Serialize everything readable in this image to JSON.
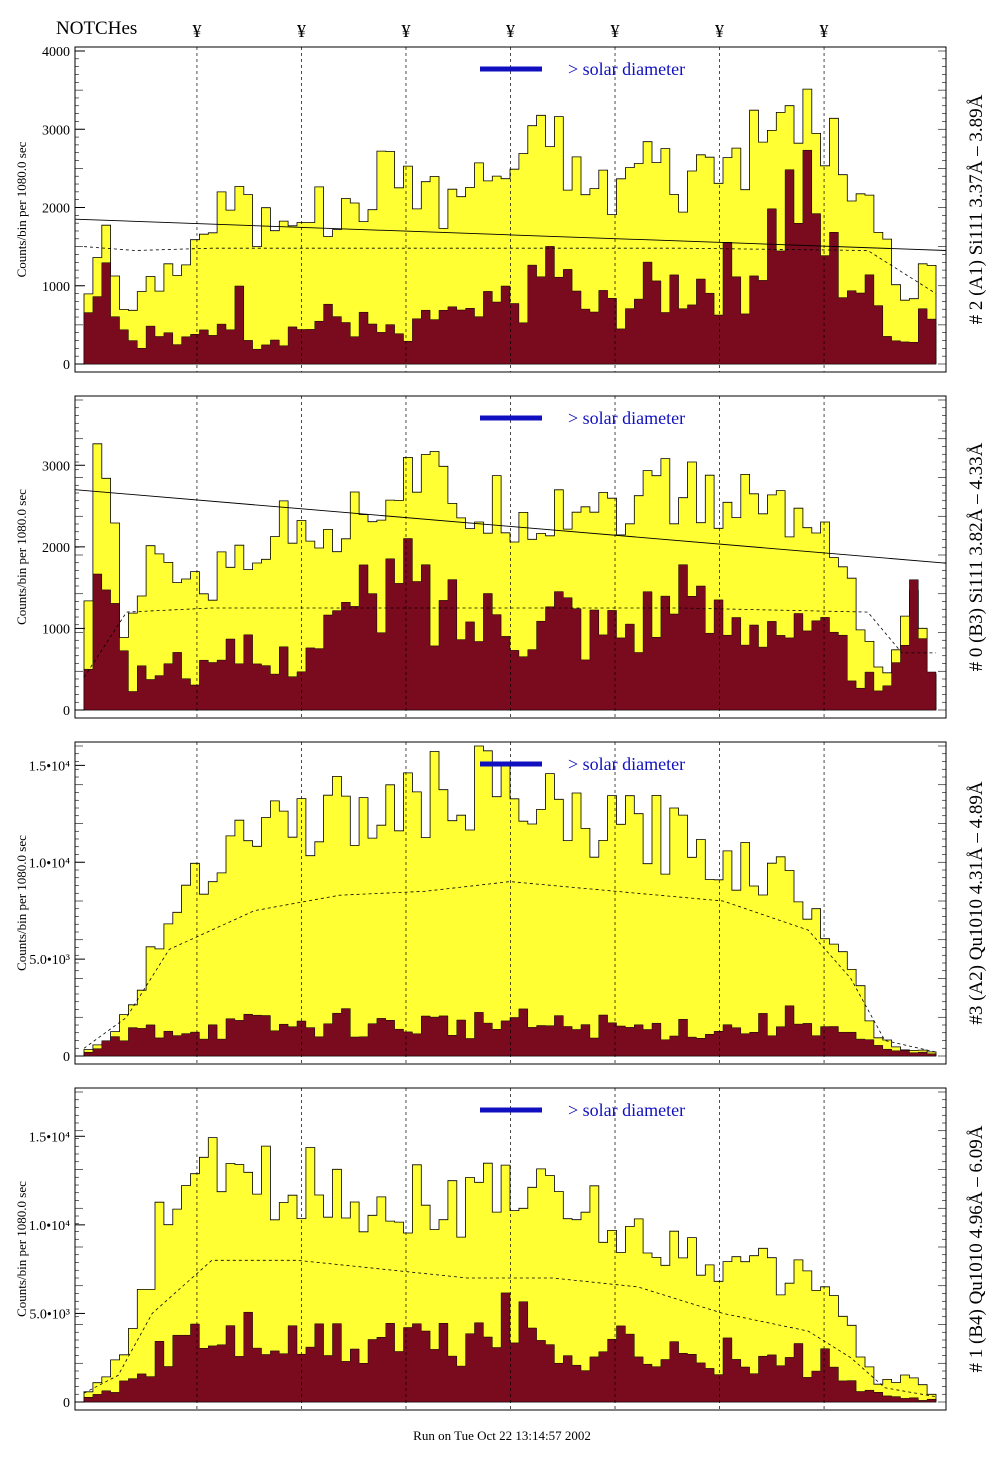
{
  "header": {
    "notches_label": "NOTCHes",
    "notch_symbol": "¥"
  },
  "footer": {
    "run_text": "Run on Tue Oct 22 13:14:57 2002"
  },
  "colors": {
    "fill_total": "#ffff33",
    "fill_sub": "#7a0a1e",
    "solar": "#1010c0"
  },
  "chart_data": [
    {
      "type": "area",
      "title": "# 2 (A1) Si111  3.37Å – 3.89Å",
      "ylabel": "Counts/bin per   1080.0 sec",
      "annotation": "> solar diameter",
      "ylim": [
        0,
        4000
      ],
      "yticks": [
        {
          "v": 0,
          "label": "0"
        },
        {
          "v": 1000,
          "label": "1000"
        },
        {
          "v": 2000,
          "label": "2000"
        },
        {
          "v": 3000,
          "label": "3000"
        },
        {
          "v": 4000,
          "label": "4000"
        }
      ],
      "total": [
        [
          0.0,
          700
        ],
        [
          0.02,
          1800
        ],
        [
          0.05,
          600
        ],
        [
          0.08,
          1000
        ],
        [
          0.12,
          1400
        ],
        [
          0.15,
          1800
        ],
        [
          0.18,
          2200
        ],
        [
          0.2,
          1700
        ],
        [
          0.25,
          2100
        ],
        [
          0.3,
          1800
        ],
        [
          0.35,
          2400
        ],
        [
          0.38,
          2500
        ],
        [
          0.42,
          2000
        ],
        [
          0.45,
          2300
        ],
        [
          0.5,
          2500
        ],
        [
          0.53,
          2700
        ],
        [
          0.55,
          3100
        ],
        [
          0.58,
          2300
        ],
        [
          0.62,
          2200
        ],
        [
          0.66,
          2700
        ],
        [
          0.7,
          2300
        ],
        [
          0.74,
          2600
        ],
        [
          0.78,
          2700
        ],
        [
          0.81,
          3000
        ],
        [
          0.84,
          3300
        ],
        [
          0.88,
          2700
        ],
        [
          0.91,
          2200
        ],
        [
          0.94,
          1500
        ],
        [
          0.97,
          600
        ],
        [
          0.99,
          1900
        ],
        [
          1.0,
          300
        ]
      ],
      "sub": [
        [
          0.0,
          200
        ],
        [
          0.02,
          1700
        ],
        [
          0.05,
          300
        ],
        [
          0.08,
          400
        ],
        [
          0.12,
          250
        ],
        [
          0.15,
          450
        ],
        [
          0.18,
          800
        ],
        [
          0.2,
          300
        ],
        [
          0.25,
          450
        ],
        [
          0.3,
          600
        ],
        [
          0.35,
          400
        ],
        [
          0.38,
          300
        ],
        [
          0.42,
          700
        ],
        [
          0.45,
          500
        ],
        [
          0.5,
          800
        ],
        [
          0.53,
          900
        ],
        [
          0.55,
          1400
        ],
        [
          0.58,
          700
        ],
        [
          0.62,
          700
        ],
        [
          0.66,
          900
        ],
        [
          0.7,
          1000
        ],
        [
          0.74,
          1100
        ],
        [
          0.78,
          1100
        ],
        [
          0.81,
          1800
        ],
        [
          0.84,
          2200
        ],
        [
          0.88,
          1300
        ],
        [
          0.91,
          1000
        ],
        [
          0.94,
          600
        ],
        [
          0.97,
          200
        ],
        [
          0.99,
          1000
        ],
        [
          1.0,
          100
        ]
      ],
      "baseline": [
        [
          0.0,
          1500
        ],
        [
          0.06,
          1450
        ],
        [
          0.15,
          1480
        ],
        [
          0.3,
          1480
        ],
        [
          0.5,
          1480
        ],
        [
          0.7,
          1480
        ],
        [
          0.92,
          1450
        ],
        [
          1.0,
          900
        ]
      ],
      "trend": [
        [
          0.0,
          1850
        ],
        [
          0.5,
          1650
        ],
        [
          1.0,
          1450
        ]
      ],
      "notches": [
        0.14,
        0.26,
        0.38,
        0.5,
        0.62,
        0.74,
        0.86
      ]
    },
    {
      "type": "area",
      "title": "# 0 (B3) Si111  3.82Å – 4.33Å",
      "ylabel": "Counts/bin per   1080.0 sec",
      "annotation": "> solar diameter",
      "ylim": [
        0,
        3800
      ],
      "yticks": [
        {
          "v": 0,
          "label": "0"
        },
        {
          "v": 1000,
          "label": "1000"
        },
        {
          "v": 2000,
          "label": "2000"
        },
        {
          "v": 3000,
          "label": "3000"
        }
      ],
      "total": [
        [
          0.0,
          600
        ],
        [
          0.02,
          3400
        ],
        [
          0.05,
          800
        ],
        [
          0.08,
          1800
        ],
        [
          0.12,
          1700
        ],
        [
          0.15,
          1500
        ],
        [
          0.18,
          1900
        ],
        [
          0.22,
          2100
        ],
        [
          0.26,
          2400
        ],
        [
          0.3,
          2200
        ],
        [
          0.34,
          2600
        ],
        [
          0.38,
          2900
        ],
        [
          0.42,
          2700
        ],
        [
          0.46,
          2400
        ],
        [
          0.5,
          2500
        ],
        [
          0.53,
          2400
        ],
        [
          0.56,
          2500
        ],
        [
          0.6,
          2600
        ],
        [
          0.64,
          2500
        ],
        [
          0.68,
          2700
        ],
        [
          0.72,
          2600
        ],
        [
          0.76,
          2500
        ],
        [
          0.8,
          2600
        ],
        [
          0.84,
          2300
        ],
        [
          0.88,
          2200
        ],
        [
          0.91,
          1200
        ],
        [
          0.94,
          300
        ],
        [
          0.97,
          1500
        ],
        [
          1.0,
          200
        ]
      ],
      "sub": [
        [
          0.0,
          200
        ],
        [
          0.02,
          2600
        ],
        [
          0.05,
          300
        ],
        [
          0.08,
          500
        ],
        [
          0.12,
          600
        ],
        [
          0.15,
          400
        ],
        [
          0.18,
          700
        ],
        [
          0.22,
          500
        ],
        [
          0.26,
          800
        ],
        [
          0.3,
          1100
        ],
        [
          0.34,
          1300
        ],
        [
          0.38,
          1600
        ],
        [
          0.42,
          1200
        ],
        [
          0.46,
          1100
        ],
        [
          0.5,
          1300
        ],
        [
          0.53,
          1000
        ],
        [
          0.56,
          1300
        ],
        [
          0.6,
          1000
        ],
        [
          0.64,
          1100
        ],
        [
          0.68,
          1300
        ],
        [
          0.72,
          1200
        ],
        [
          0.76,
          1100
        ],
        [
          0.8,
          1300
        ],
        [
          0.84,
          900
        ],
        [
          0.88,
          800
        ],
        [
          0.91,
          500
        ],
        [
          0.94,
          100
        ],
        [
          0.97,
          1400
        ],
        [
          1.0,
          100
        ]
      ],
      "baseline": [
        [
          0.0,
          400
        ],
        [
          0.05,
          1200
        ],
        [
          0.15,
          1250
        ],
        [
          0.3,
          1250
        ],
        [
          0.5,
          1250
        ],
        [
          0.7,
          1250
        ],
        [
          0.92,
          1200
        ],
        [
          0.96,
          700
        ],
        [
          1.0,
          700
        ]
      ],
      "trend": [
        [
          0.0,
          2700
        ],
        [
          0.5,
          2250
        ],
        [
          1.0,
          1800
        ]
      ],
      "notches": [
        0.14,
        0.26,
        0.38,
        0.5,
        0.62,
        0.74,
        0.86
      ]
    },
    {
      "type": "area",
      "title": "#3 (A2) Qu1010  4.31Å – 4.89Å",
      "ylabel": "Counts/bin per   1080.0 sec",
      "annotation": "> solar diameter",
      "ylim": [
        0,
        16000
      ],
      "yticks": [
        {
          "v": 0,
          "label": "0"
        },
        {
          "v": 5000,
          "label": "5.0•10³"
        },
        {
          "v": 10000,
          "label": "1.0•10⁴"
        },
        {
          "v": 15000,
          "label": "1.5•10⁴"
        }
      ],
      "total": [
        [
          0.0,
          200
        ],
        [
          0.03,
          800
        ],
        [
          0.06,
          3000
        ],
        [
          0.09,
          6000
        ],
        [
          0.12,
          9000
        ],
        [
          0.15,
          10500
        ],
        [
          0.18,
          11500
        ],
        [
          0.22,
          12000
        ],
        [
          0.26,
          12200
        ],
        [
          0.3,
          12500
        ],
        [
          0.34,
          12300
        ],
        [
          0.38,
          13000
        ],
        [
          0.42,
          13500
        ],
        [
          0.46,
          14000
        ],
        [
          0.5,
          13000
        ],
        [
          0.54,
          12500
        ],
        [
          0.58,
          12000
        ],
        [
          0.62,
          11500
        ],
        [
          0.66,
          11800
        ],
        [
          0.7,
          11000
        ],
        [
          0.74,
          10500
        ],
        [
          0.78,
          10000
        ],
        [
          0.82,
          9000
        ],
        [
          0.86,
          8000
        ],
        [
          0.9,
          5000
        ],
        [
          0.93,
          1000
        ],
        [
          0.96,
          400
        ],
        [
          1.0,
          200
        ]
      ],
      "sub": [
        [
          0.0,
          100
        ],
        [
          0.06,
          1200
        ],
        [
          0.1,
          1500
        ],
        [
          0.15,
          1400
        ],
        [
          0.2,
          1600
        ],
        [
          0.25,
          1500
        ],
        [
          0.3,
          1800
        ],
        [
          0.35,
          1500
        ],
        [
          0.4,
          1700
        ],
        [
          0.45,
          1600
        ],
        [
          0.5,
          1800
        ],
        [
          0.55,
          1500
        ],
        [
          0.6,
          1600
        ],
        [
          0.65,
          1400
        ],
        [
          0.7,
          1500
        ],
        [
          0.75,
          1400
        ],
        [
          0.8,
          1600
        ],
        [
          0.85,
          2000
        ],
        [
          0.9,
          1000
        ],
        [
          0.94,
          300
        ],
        [
          1.0,
          100
        ]
      ],
      "baseline": [
        [
          0.0,
          400
        ],
        [
          0.05,
          2000
        ],
        [
          0.1,
          5500
        ],
        [
          0.2,
          7500
        ],
        [
          0.3,
          8300
        ],
        [
          0.4,
          8500
        ],
        [
          0.5,
          9000
        ],
        [
          0.55,
          8800
        ],
        [
          0.65,
          8400
        ],
        [
          0.75,
          8000
        ],
        [
          0.85,
          6500
        ],
        [
          0.9,
          4000
        ],
        [
          0.94,
          800
        ],
        [
          1.0,
          200
        ]
      ],
      "trend": [],
      "notches": [
        0.14,
        0.26,
        0.38,
        0.5,
        0.62,
        0.74,
        0.86
      ]
    },
    {
      "type": "area",
      "title": "# 1 (B4) Qu1010 4.96Å – 6.09Å",
      "ylabel": "Counts/bin per   1080.0 sec",
      "annotation": "> solar diameter",
      "ylim": [
        0,
        17500
      ],
      "yticks": [
        {
          "v": 0,
          "label": "0"
        },
        {
          "v": 5000,
          "label": "5.0•10³"
        },
        {
          "v": 10000,
          "label": "1.0•10⁴"
        },
        {
          "v": 15000,
          "label": "1.5•10⁴"
        }
      ],
      "total": [
        [
          0.0,
          500
        ],
        [
          0.03,
          1500
        ],
        [
          0.06,
          4000
        ],
        [
          0.09,
          10000
        ],
        [
          0.12,
          12000
        ],
        [
          0.16,
          13000
        ],
        [
          0.2,
          12500
        ],
        [
          0.24,
          12000
        ],
        [
          0.28,
          12500
        ],
        [
          0.32,
          11500
        ],
        [
          0.36,
          11000
        ],
        [
          0.4,
          12000
        ],
        [
          0.44,
          10500
        ],
        [
          0.48,
          13000
        ],
        [
          0.52,
          12000
        ],
        [
          0.56,
          11000
        ],
        [
          0.6,
          10500
        ],
        [
          0.64,
          9500
        ],
        [
          0.68,
          9000
        ],
        [
          0.72,
          8500
        ],
        [
          0.76,
          7500
        ],
        [
          0.8,
          7500
        ],
        [
          0.84,
          7000
        ],
        [
          0.88,
          6500
        ],
        [
          0.9,
          4000
        ],
        [
          0.93,
          1000
        ],
        [
          0.97,
          1500
        ],
        [
          1.0,
          300
        ]
      ],
      "sub": [
        [
          0.0,
          100
        ],
        [
          0.04,
          800
        ],
        [
          0.08,
          2000
        ],
        [
          0.12,
          4000
        ],
        [
          0.16,
          3500
        ],
        [
          0.2,
          4000
        ],
        [
          0.24,
          3000
        ],
        [
          0.28,
          3500
        ],
        [
          0.32,
          3000
        ],
        [
          0.36,
          4000
        ],
        [
          0.4,
          3500
        ],
        [
          0.44,
          3000
        ],
        [
          0.48,
          5000
        ],
        [
          0.52,
          4000
        ],
        [
          0.56,
          3000
        ],
        [
          0.6,
          3000
        ],
        [
          0.64,
          3500
        ],
        [
          0.68,
          2500
        ],
        [
          0.72,
          2500
        ],
        [
          0.76,
          2500
        ],
        [
          0.8,
          2000
        ],
        [
          0.84,
          2500
        ],
        [
          0.88,
          2000
        ],
        [
          0.92,
          500
        ],
        [
          0.96,
          200
        ],
        [
          1.0,
          100
        ]
      ],
      "baseline": [
        [
          0.0,
          500
        ],
        [
          0.04,
          1500
        ],
        [
          0.08,
          5000
        ],
        [
          0.15,
          8000
        ],
        [
          0.25,
          8000
        ],
        [
          0.35,
          7500
        ],
        [
          0.45,
          7000
        ],
        [
          0.55,
          7000
        ],
        [
          0.65,
          6500
        ],
        [
          0.75,
          5000
        ],
        [
          0.85,
          4000
        ],
        [
          0.9,
          2500
        ],
        [
          0.94,
          800
        ],
        [
          1.0,
          300
        ]
      ],
      "trend": [],
      "notches": [
        0.14,
        0.26,
        0.38,
        0.5,
        0.62,
        0.74,
        0.86
      ]
    }
  ]
}
